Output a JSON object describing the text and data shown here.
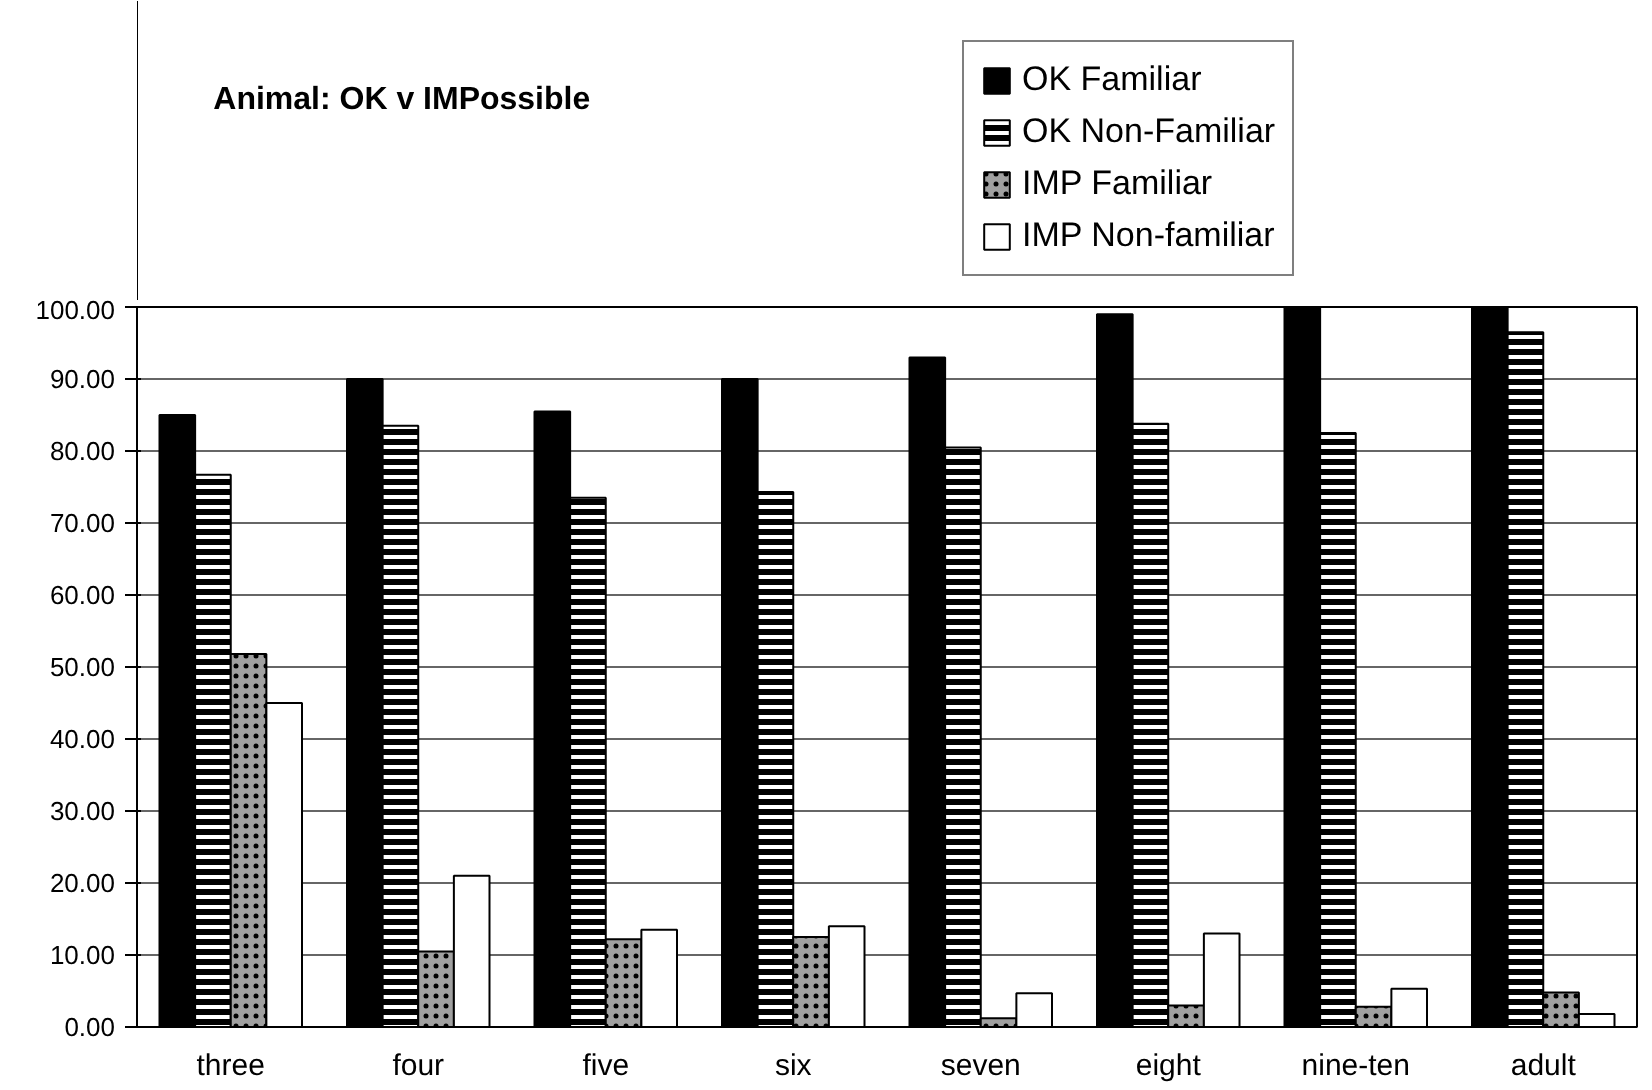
{
  "chart_data": {
    "type": "bar",
    "title": "Animal: OK v IMPossible",
    "categories": [
      "three",
      "four",
      "five",
      "six",
      "seven",
      "eight",
      "nine-ten",
      "adult"
    ],
    "series": [
      {
        "name": "OK Familiar",
        "color": "#000000",
        "values": [
          85,
          90,
          85.5,
          90,
          93,
          99,
          100,
          100
        ]
      },
      {
        "name": "OK Non-Familiar",
        "color": "#000000",
        "values": [
          76.7,
          83.5,
          73.5,
          74.3,
          80.5,
          83.8,
          82.5,
          96.5
        ]
      },
      {
        "name": "IMP Familiar",
        "color": "#a0a0a0",
        "values": [
          51.8,
          10.5,
          12.2,
          12.5,
          1.2,
          3,
          2.8,
          4.8
        ]
      },
      {
        "name": "IMP Non-familiar",
        "color": "#ffffff",
        "values": [
          45,
          21,
          13.5,
          14,
          4.7,
          13,
          5.3,
          1.8
        ]
      }
    ],
    "ylim": [
      0,
      100
    ],
    "yticks": [
      {
        "value": 0,
        "label": "0.00"
      },
      {
        "value": 10,
        "label": "10.00"
      },
      {
        "value": 20,
        "label": "20.00"
      },
      {
        "value": 30,
        "label": "30.00"
      },
      {
        "value": 40,
        "label": "40.00"
      },
      {
        "value": 50,
        "label": "50.00"
      },
      {
        "value": 60,
        "label": "60.00"
      },
      {
        "value": 70,
        "label": "70.00"
      },
      {
        "value": 80,
        "label": "80.00"
      },
      {
        "value": 90,
        "label": "90.00"
      },
      {
        "value": 100,
        "label": "100.00"
      }
    ],
    "grid": "y",
    "legend": "top"
  }
}
